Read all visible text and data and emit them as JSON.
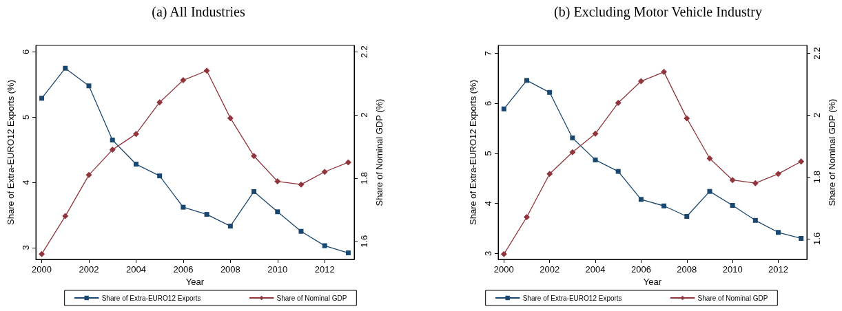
{
  "chart_data": [
    {
      "type": "line",
      "title": "(a) All Industries",
      "xlabel": "Year",
      "ylabel": "Share of Extra-EURO12 Exports (%)",
      "y2label": "Share of Nominal GDP (%)",
      "x": [
        2000,
        2001,
        2002,
        2003,
        2004,
        2005,
        2006,
        2007,
        2008,
        2009,
        2010,
        2011,
        2012,
        2013
      ],
      "series": [
        {
          "name": "Share of Extra-EURO12 Exports",
          "color": "#1a476f",
          "marker": "square",
          "values": [
            5.29,
            5.75,
            5.48,
            4.65,
            4.28,
            4.1,
            3.62,
            3.51,
            3.33,
            3.86,
            3.55,
            3.25,
            3.03,
            2.92
          ]
        },
        {
          "name": "Share of Nominal GDP",
          "color": "#90353b",
          "marker": "diamond",
          "axis": "y2",
          "values": [
            1.56,
            1.68,
            1.81,
            1.89,
            1.94,
            2.04,
            2.11,
            2.14,
            1.99,
            1.87,
            1.79,
            1.78,
            1.82,
            1.85
          ]
        }
      ],
      "xlim": [
        1999.75,
        2013.25
      ],
      "xticks": [
        2000,
        2002,
        2004,
        2006,
        2008,
        2010,
        2012
      ],
      "ylim": [
        2.82,
        6.1
      ],
      "yticks": [
        3,
        4,
        5,
        6
      ],
      "y2lim": [
        1.543,
        2.22
      ],
      "y2ticks": [
        1.6,
        1.8,
        2,
        2.2
      ],
      "grid": false,
      "legend": "bottom",
      "line_style": "solid"
    },
    {
      "type": "line",
      "title": "(b) Excluding Motor Vehicle Industry",
      "xlabel": "Year",
      "ylabel": "Share of Extra-EURO12 Exports (%)",
      "y2label": "Share of Nominal GDP (%)",
      "x": [
        2000,
        2001,
        2002,
        2003,
        2004,
        2005,
        2006,
        2007,
        2008,
        2009,
        2010,
        2011,
        2012,
        2013
      ],
      "series": [
        {
          "name": "Share of Extra-EURO12 Exports",
          "color": "#1a476f",
          "marker": "square",
          "values": [
            5.89,
            6.46,
            6.22,
            5.31,
            4.87,
            4.64,
            4.08,
            3.95,
            3.74,
            4.24,
            3.96,
            3.66,
            3.42,
            3.3
          ]
        },
        {
          "name": "Share of Nominal GDP",
          "color": "#90353b",
          "marker": "diamond",
          "axis": "y2",
          "values": [
            1.55,
            1.67,
            1.81,
            1.88,
            1.94,
            2.04,
            2.11,
            2.14,
            1.99,
            1.86,
            1.79,
            1.78,
            1.81,
            1.85
          ]
        }
      ],
      "xlim": [
        1999.75,
        2013.25
      ],
      "xticks": [
        2000,
        2002,
        2004,
        2006,
        2008,
        2010,
        2012
      ],
      "ylim": [
        2.88,
        7.16
      ],
      "yticks": [
        3,
        4,
        5,
        6,
        7
      ],
      "y2lim": [
        1.533,
        2.226
      ],
      "y2ticks": [
        1.6,
        1.8,
        2,
        2.2
      ],
      "grid": false,
      "legend": "bottom",
      "line_style": "solid"
    }
  ]
}
